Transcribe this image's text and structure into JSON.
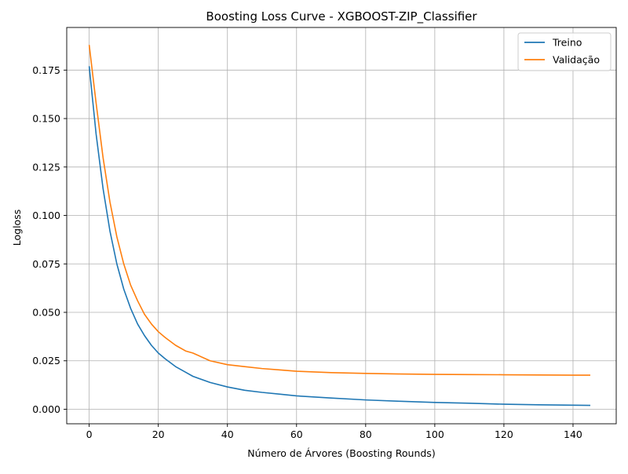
{
  "chart_data": {
    "type": "line",
    "title": "Boosting Loss Curve - XGBOOST-ZIP_Classifier",
    "xlabel": "Número de Árvores (Boosting Rounds)",
    "ylabel": "Logloss",
    "xlim": [
      -6.5,
      152.5
    ],
    "ylim": [
      -0.0075,
      0.197
    ],
    "xticks": [
      0,
      20,
      40,
      60,
      80,
      100,
      120,
      140
    ],
    "xtick_labels": [
      "0",
      "20",
      "40",
      "60",
      "80",
      "100",
      "120",
      "140"
    ],
    "yticks": [
      0.0,
      0.025,
      0.05,
      0.075,
      0.1,
      0.125,
      0.15,
      0.175
    ],
    "ytick_labels": [
      "0.000",
      "0.025",
      "0.050",
      "0.075",
      "0.100",
      "0.125",
      "0.150",
      "0.175"
    ],
    "grid": true,
    "legend_position": "top-right",
    "x": [
      0,
      2,
      4,
      6,
      8,
      10,
      12,
      14,
      16,
      18,
      20,
      22,
      25,
      28,
      30,
      35,
      40,
      45,
      50,
      55,
      60,
      70,
      80,
      90,
      100,
      110,
      120,
      130,
      140,
      145
    ],
    "series": [
      {
        "name": "Treino",
        "color": "#1f77b4",
        "values": [
          0.177,
          0.142,
          0.114,
          0.092,
          0.075,
          0.062,
          0.052,
          0.044,
          0.038,
          0.033,
          0.029,
          0.026,
          0.022,
          0.019,
          0.017,
          0.0138,
          0.0115,
          0.0098,
          0.0087,
          0.0078,
          0.0069,
          0.0058,
          0.0048,
          0.0041,
          0.0035,
          0.0031,
          0.0026,
          0.0023,
          0.0021,
          0.002
        ]
      },
      {
        "name": "Validação",
        "color": "#ff7f0e",
        "values": [
          0.188,
          0.158,
          0.13,
          0.107,
          0.089,
          0.075,
          0.064,
          0.056,
          0.049,
          0.044,
          0.04,
          0.037,
          0.033,
          0.03,
          0.029,
          0.025,
          0.023,
          0.022,
          0.021,
          0.0203,
          0.0196,
          0.0189,
          0.0185,
          0.0182,
          0.018,
          0.0179,
          0.0178,
          0.0177,
          0.0176,
          0.0176
        ]
      }
    ]
  }
}
